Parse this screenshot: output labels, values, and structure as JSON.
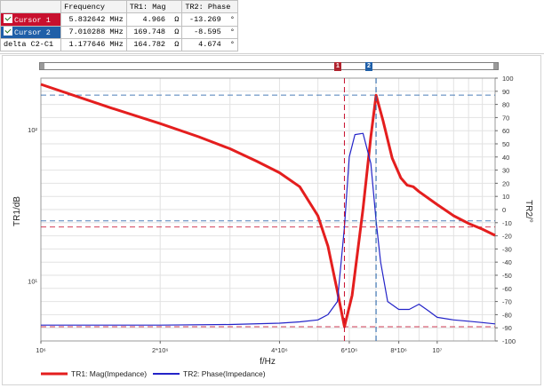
{
  "cursor_table": {
    "headers": [
      "",
      "Frequency",
      "TR1: Mag",
      "TR2: Phase"
    ],
    "rows": [
      {
        "label": "Cursor 1",
        "freq": "5.832642 MHz",
        "mag": "4.966",
        "mag_unit": "Ω",
        "phase": "-13.269",
        "phase_unit": "°"
      },
      {
        "label": "Cursor 2",
        "freq": "7.010288 MHz",
        "mag": "169.748",
        "mag_unit": "Ω",
        "phase": "-8.595",
        "phase_unit": "°"
      },
      {
        "label": "delta C2-C1",
        "freq": "1.177646 MHz",
        "mag": "164.782",
        "mag_unit": "Ω",
        "phase": "4.674",
        "phase_unit": "°"
      }
    ]
  },
  "markers": {
    "m1": "1",
    "m2": "2"
  },
  "chart_data": {
    "type": "line",
    "xlabel": "f/Hz",
    "ylabel_left": "TR1/dB",
    "ylabel_right": "TR2/°",
    "x_scale": "log",
    "xlim": [
      1000000,
      14000000
    ],
    "y_left_scale": "log",
    "y_left_lim": [
      4,
      220
    ],
    "y_right_lim": [
      -100,
      100
    ],
    "x_ticks": [
      {
        "value": 1000000,
        "label": "10⁶"
      },
      {
        "value": 2000000,
        "label": "2*10⁶"
      },
      {
        "value": 4000000,
        "label": "4*10⁶"
      },
      {
        "value": 6000000,
        "label": "6*10⁶"
      },
      {
        "value": 8000000,
        "label": "8*10⁶"
      },
      {
        "value": 10000000,
        "label": "10⁷"
      }
    ],
    "y_left_ticks": [
      {
        "value": 10,
        "label": "10¹"
      },
      {
        "value": 100,
        "label": "10²"
      }
    ],
    "y_right_ticks": [
      {
        "value": 100,
        "label": "100"
      },
      {
        "value": 90,
        "label": "90"
      },
      {
        "value": 80,
        "label": "80"
      },
      {
        "value": 70,
        "label": "70"
      },
      {
        "value": 60,
        "label": "60"
      },
      {
        "value": 50,
        "label": "50"
      },
      {
        "value": 40,
        "label": "40"
      },
      {
        "value": 30,
        "label": "30"
      },
      {
        "value": 20,
        "label": "20"
      },
      {
        "value": 10,
        "label": "10"
      },
      {
        "value": 0,
        "label": "0"
      },
      {
        "value": -10,
        "label": "-10"
      },
      {
        "value": -20,
        "label": "-20"
      },
      {
        "value": -30,
        "label": "-30"
      },
      {
        "value": -40,
        "label": "-40"
      },
      {
        "value": -50,
        "label": "-50"
      },
      {
        "value": -60,
        "label": "-60"
      },
      {
        "value": -70,
        "label": "-70"
      },
      {
        "value": -80,
        "label": "-80"
      },
      {
        "value": -90,
        "label": "-90"
      },
      {
        "value": -100,
        "label": "-100"
      }
    ],
    "series": [
      {
        "name": "TR1: Mag(Impedance)",
        "axis": "left",
        "color": "#e41e1e",
        "x": [
          1000000,
          1500000,
          2000000,
          2500000,
          3000000,
          3500000,
          4000000,
          4500000,
          5000000,
          5300000,
          5600000,
          5832642,
          6100000,
          6500000,
          6800000,
          7010288,
          7300000,
          7700000,
          8100000,
          8400000,
          8700000,
          9000000,
          10000000,
          11000000,
          12000000,
          13000000,
          14000000
        ],
        "y": [
          200,
          140,
          110,
          90,
          75,
          62,
          52,
          42,
          27,
          17,
          8.5,
          4.966,
          8,
          30,
          90,
          169.748,
          115,
          65,
          48,
          43,
          42,
          39,
          32,
          27,
          24,
          22,
          20
        ]
      },
      {
        "name": "TR2: Phase(Impedance)",
        "axis": "right",
        "color": "#2323c8",
        "x": [
          1000000,
          2000000,
          3000000,
          4000000,
          4500000,
          5000000,
          5300000,
          5600000,
          5832642,
          6000000,
          6200000,
          6500000,
          6800000,
          7010288,
          7200000,
          7500000,
          8000000,
          8500000,
          9000000,
          9500000,
          10000000,
          11000000,
          12000000,
          13000000,
          14000000
        ],
        "y": [
          -88,
          -88,
          -87.5,
          -86.5,
          -85.5,
          -84,
          -80,
          -70,
          -13.269,
          40,
          57,
          58,
          35,
          -8.595,
          -40,
          -70,
          -76,
          -76,
          -72,
          -77,
          -82,
          -84,
          -85,
          -86,
          -87
        ]
      }
    ],
    "cursors": [
      {
        "name": "Cursor 1",
        "x": 5832642,
        "color": "#c8102e"
      },
      {
        "name": "Cursor 2",
        "x": 7010288,
        "color": "#1f5fa8"
      }
    ],
    "legend": {
      "placement": "bottom-left"
    },
    "grid": true
  }
}
